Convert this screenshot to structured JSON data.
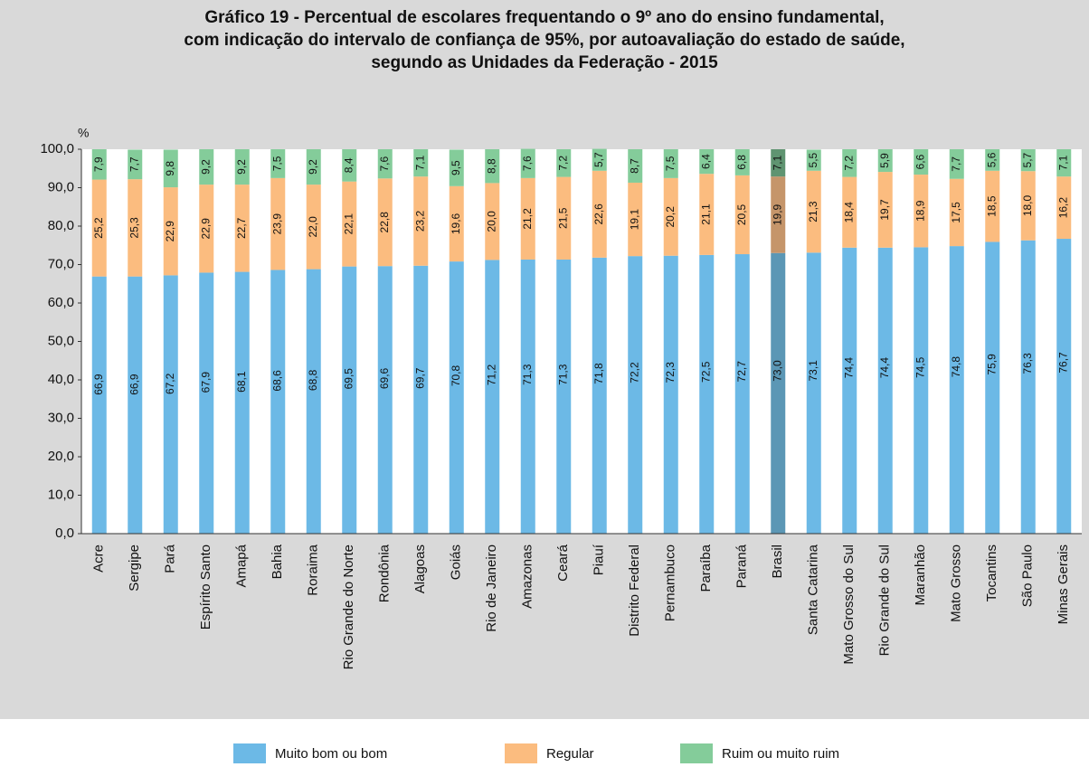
{
  "chart_data": {
    "type": "stacked_bar",
    "title": [
      "Gráfico 19 - Percentual de escolares frequentando o 9º ano do ensino fundamental,",
      "com indicação do intervalo de confiança de 95%, por autoavaliação do estado de saúde,",
      "segundo as Unidades da Federação - 2015"
    ],
    "y_label": "%",
    "categories": [
      "Acre",
      "Sergipe",
      "Pará",
      "Espírito Santo",
      "Amapá",
      "Bahia",
      "Roraima",
      "Rio Grande do Norte",
      "Rondônia",
      "Alagoas",
      "Goiás",
      "Rio de Janeiro",
      "Amazonas",
      "Ceará",
      "Piauí",
      "Distrito Federal",
      "Pernambuco",
      "Paraíba",
      "Paraná",
      "Brasil",
      "Santa Catarina",
      "Mato Grosso do Sul",
      "Rio Grande do Sul",
      "Maranhão",
      "Mato Grosso",
      "Tocantins",
      "São Paulo",
      "Minas Gerais"
    ],
    "highlight": "Brasil",
    "series": [
      {
        "name": "Muito bom ou bom",
        "color": "#6cb9e6",
        "highlight_color": "#5b97b5",
        "values": [
          66.9,
          66.9,
          67.2,
          67.9,
          68.1,
          68.6,
          68.8,
          69.5,
          69.6,
          69.7,
          70.8,
          71.2,
          71.3,
          71.3,
          71.8,
          72.2,
          72.3,
          72.5,
          72.7,
          73.0,
          73.1,
          74.4,
          74.4,
          74.5,
          74.8,
          75.9,
          76.3,
          76.7
        ],
        "value_labels": [
          "66,9",
          "66,9",
          "67,2",
          "67,9",
          "68,1",
          "68,6",
          "68,8",
          "69,5",
          "69,6",
          "69,7",
          "70,8",
          "71,2",
          "71,3",
          "71,3",
          "71,8",
          "72,2",
          "72,3",
          "72,5",
          "72,7",
          "73,0",
          "73,1",
          "74,4",
          "74,4",
          "74,5",
          "74,8",
          "75,9",
          "76,3",
          "76,7"
        ]
      },
      {
        "name": "Regular",
        "color": "#fbbc7f",
        "highlight_color": "#c5956a",
        "values": [
          25.2,
          25.3,
          22.9,
          22.9,
          22.7,
          23.9,
          22.0,
          22.1,
          22.8,
          23.2,
          19.6,
          20.0,
          21.2,
          21.5,
          22.6,
          19.1,
          20.2,
          21.1,
          20.5,
          19.9,
          21.3,
          18.4,
          19.7,
          18.9,
          17.5,
          18.5,
          18.0,
          16.2
        ],
        "value_labels": [
          "25,2",
          "25,3",
          "22,9",
          "22,9",
          "22,7",
          "23,9",
          "22,0",
          "22,1",
          "22,8",
          "23,2",
          "19,6",
          "20,0",
          "21,2",
          "21,5",
          "22,6",
          "19,1",
          "20,2",
          "21,1",
          "20,5",
          "19,9",
          "21,3",
          "18,4",
          "19,7",
          "18,9",
          "17,5",
          "18,5",
          "18,0",
          "16,2"
        ]
      },
      {
        "name": "Ruim ou muito ruim",
        "color": "#84cc9a",
        "highlight_color": "#5f9471",
        "values": [
          7.9,
          7.7,
          9.8,
          9.2,
          9.2,
          7.5,
          9.2,
          8.4,
          7.6,
          7.1,
          9.5,
          8.8,
          7.6,
          7.2,
          5.7,
          8.7,
          7.5,
          6.4,
          6.8,
          7.1,
          5.5,
          7.2,
          5.9,
          6.6,
          7.7,
          5.6,
          5.7,
          7.1
        ],
        "value_labels": [
          "7,9",
          "7,7",
          "9,8",
          "9,2",
          "9,2",
          "7,5",
          "9,2",
          "8,4",
          "7,6",
          "7,1",
          "9,5",
          "8,8",
          "7,6",
          "7,2",
          "5,7",
          "8,7",
          "7,5",
          "6,4",
          "6,8",
          "7,1",
          "5,5",
          "7,2",
          "5,9",
          "6,6",
          "7,7",
          "5,6",
          "5,7",
          "7,1"
        ]
      }
    ],
    "ylim": [
      0,
      100
    ],
    "yticks": [
      {
        "value": 0,
        "label": "0,0"
      },
      {
        "value": 10,
        "label": "10,0"
      },
      {
        "value": 20,
        "label": "20,0"
      },
      {
        "value": 30,
        "label": "30,0"
      },
      {
        "value": 40,
        "label": "40,0"
      },
      {
        "value": 50,
        "label": "50,0"
      },
      {
        "value": 60,
        "label": "60,0"
      },
      {
        "value": 70,
        "label": "70,0"
      },
      {
        "value": 80,
        "label": "80,0"
      },
      {
        "value": 90,
        "label": "90,0"
      },
      {
        "value": 100,
        "label": "100,0"
      }
    ],
    "legend": "bottom"
  }
}
